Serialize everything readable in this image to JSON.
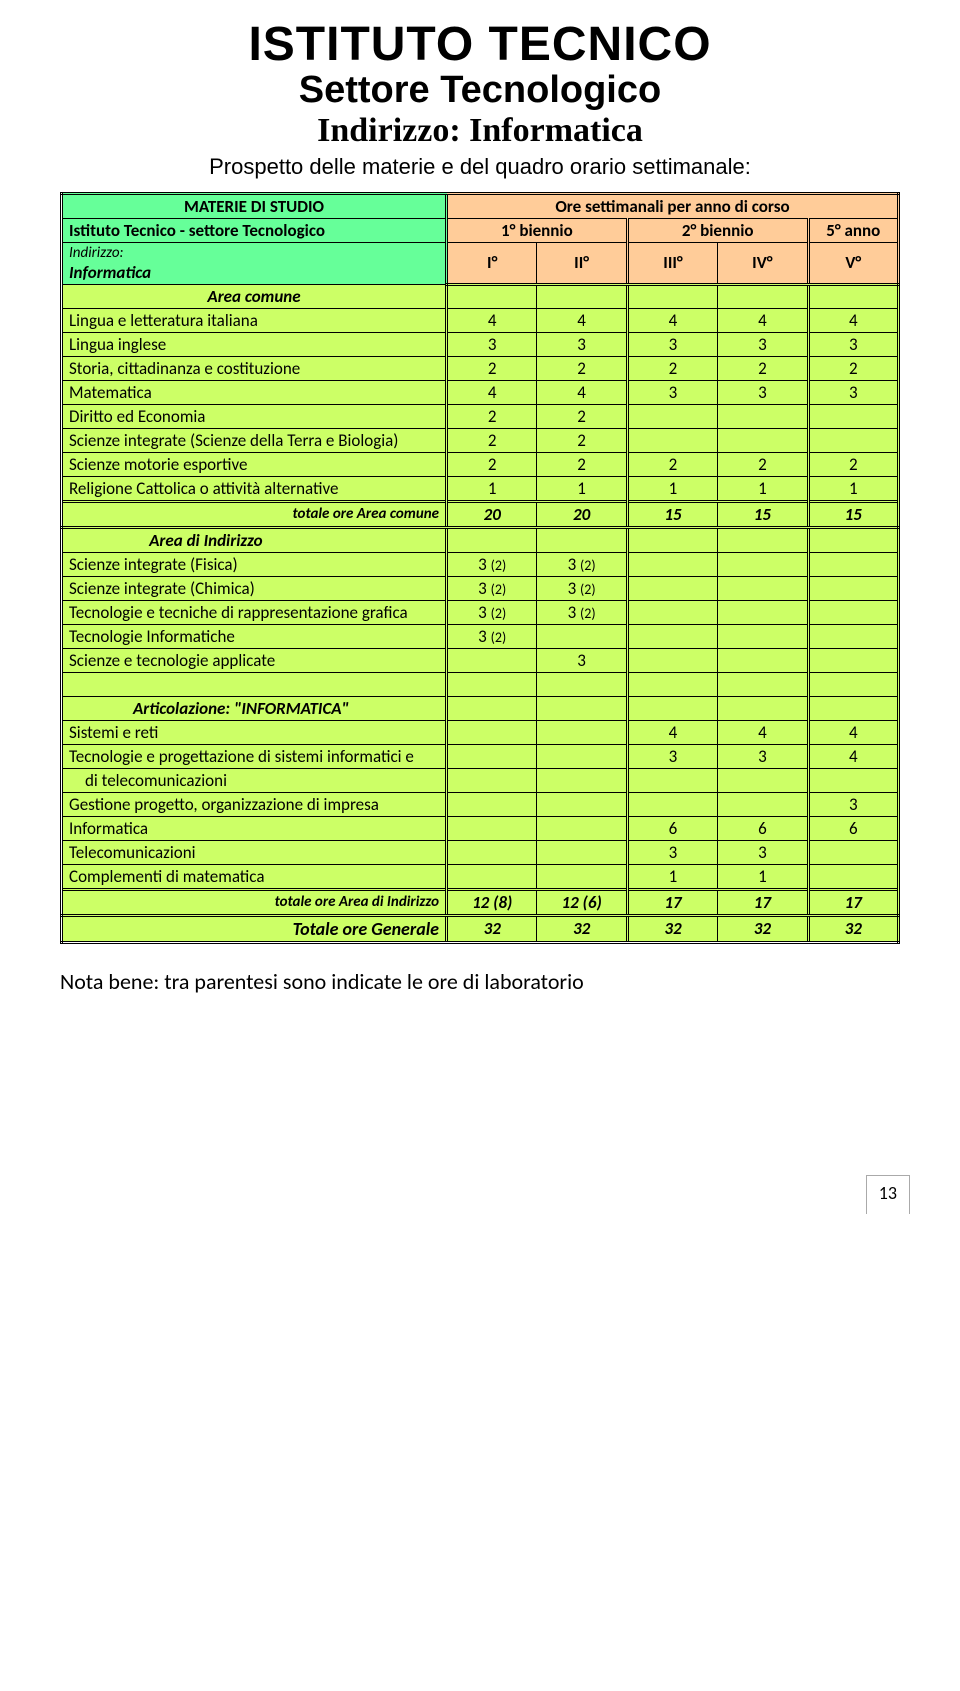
{
  "titles": {
    "main": "ISTITUTO TECNICO",
    "sub": "Settore Tecnologico",
    "indirizzo": "Indirizzo: Informatica",
    "prospetto": "Prospetto delle materie e del quadro orario settimanale:"
  },
  "header": {
    "materie": "MATERIE DI STUDIO",
    "istituto": "Istituto Tecnico - settore Tecnologico",
    "indirizzo_label": "Indirizzo:",
    "indirizzo_value": "Informatica",
    "ore": "Ore settimanali per anno di corso",
    "bien1": "1° biennio",
    "bien2": "2° biennio",
    "anno5": "5° anno",
    "c1": "I°",
    "c2": "II°",
    "c3": "III°",
    "c4": "IV°",
    "c5": "V°"
  },
  "sections": {
    "area_comune": "Area comune",
    "area_indirizzo": "Area di Indirizzo",
    "articolazione": "Articolazione: \"INFORMATICA\""
  },
  "rows_comune": [
    {
      "label": "Lingua e letteratura italiana",
      "v": [
        "4",
        "4",
        "4",
        "4",
        "4"
      ]
    },
    {
      "label": "Lingua inglese",
      "v": [
        "3",
        "3",
        "3",
        "3",
        "3"
      ]
    },
    {
      "label": "Storia, cittadinanza e costituzione",
      "v": [
        "2",
        "2",
        "2",
        "2",
        "2"
      ]
    },
    {
      "label": "Matematica",
      "v": [
        "4",
        "4",
        "3",
        "3",
        "3"
      ]
    },
    {
      "label": "Diritto ed Economia",
      "v": [
        "2",
        "2",
        "",
        "",
        ""
      ]
    },
    {
      "label": "Scienze integrate (Scienze della Terra e Biologia)",
      "v": [
        "2",
        "2",
        "",
        "",
        ""
      ]
    },
    {
      "label": "Scienze motorie esportive",
      "v": [
        "2",
        "2",
        "2",
        "2",
        "2"
      ]
    },
    {
      "label": "Religione Cattolica o attività alternative",
      "v": [
        "1",
        "1",
        "1",
        "1",
        "1"
      ]
    }
  ],
  "totale_comune": {
    "label": "totale ore Area comune",
    "v": [
      "20",
      "20",
      "15",
      "15",
      "15"
    ]
  },
  "rows_indirizzo1": [
    {
      "label": "Scienze integrate (Fisica)",
      "v": [
        "3 (2)",
        "3 (2)",
        "",
        "",
        ""
      ]
    },
    {
      "label": "Scienze integrate (Chimica)",
      "v": [
        "3 (2)",
        "3 (2)",
        "",
        "",
        ""
      ]
    },
    {
      "label": "Tecnologie e tecniche di rappresentazione grafica",
      "v": [
        "3 (2)",
        "3 (2)",
        "",
        "",
        ""
      ]
    },
    {
      "label": "Tecnologie Informatiche",
      "v": [
        "3 (2)",
        "",
        "",
        "",
        ""
      ]
    },
    {
      "label": "Scienze e tecnologie applicate",
      "v": [
        "",
        "3",
        "",
        "",
        ""
      ]
    }
  ],
  "rows_indirizzo2": [
    {
      "label": "Sistemi e reti",
      "v": [
        "",
        "",
        "4",
        "4",
        "4"
      ]
    },
    {
      "label": "Tecnologie e progettazione di sistemi informatici e",
      "v": [
        "",
        "",
        "3",
        "3",
        "4"
      ]
    },
    {
      "label": "  di telecomunicazioni",
      "indent": true,
      "v": [
        "",
        "",
        "",
        "",
        ""
      ]
    },
    {
      "label": "Gestione progetto, organizzazione di impresa",
      "v": [
        "",
        "",
        "",
        "",
        "3"
      ]
    },
    {
      "label": "Informatica",
      "v": [
        "",
        "",
        "6",
        "6",
        "6"
      ]
    },
    {
      "label": "Telecomunicazioni",
      "v": [
        "",
        "",
        "3",
        "3",
        ""
      ]
    },
    {
      "label": "Complementi di matematica",
      "v": [
        "",
        "",
        "1",
        "1",
        ""
      ]
    }
  ],
  "totale_indirizzo": {
    "label": "totale ore Area di Indirizzo",
    "v": [
      "12 (8)",
      "12 (6)",
      "17",
      "17",
      "17"
    ]
  },
  "totale_generale": {
    "label": "Totale ore Generale",
    "v": [
      "32",
      "32",
      "32",
      "32",
      "32"
    ]
  },
  "nota": "Nota bene: tra parentesi sono indicate le ore di laboratorio",
  "page_number": "13",
  "colors": {
    "header_green": "#66ff99",
    "header_orange": "#ffcc99",
    "body_yellow": "#ccff66"
  }
}
